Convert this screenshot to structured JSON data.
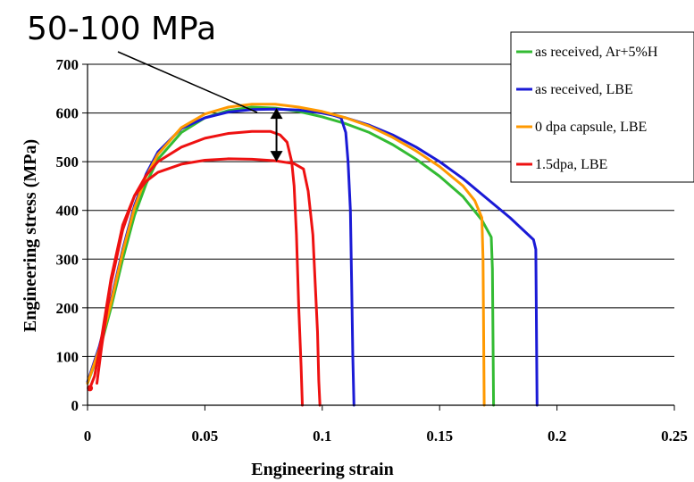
{
  "chart_data": {
    "type": "line",
    "xlabel": "Engineering strain",
    "ylabel": "Engineering stress (MPa)",
    "xlim": [
      0,
      0.25
    ],
    "ylim": [
      0,
      700
    ],
    "xticks": [
      "0",
      "0.05",
      "0.1",
      "0.15",
      "0.2",
      "0.25"
    ],
    "yticks": [
      "0",
      "100",
      "200",
      "300",
      "400",
      "500",
      "600",
      "700"
    ],
    "grid": "horizontal",
    "legend_position": "top-right",
    "annotation": "50-100 MPa",
    "series": [
      {
        "name": "as received, Ar+5%H",
        "color": "#33bb33",
        "points": [
          [
            0.0,
            45
          ],
          [
            0.005,
            110
          ],
          [
            0.01,
            200
          ],
          [
            0.015,
            300
          ],
          [
            0.02,
            390
          ],
          [
            0.025,
            455
          ],
          [
            0.03,
            505
          ],
          [
            0.04,
            560
          ],
          [
            0.05,
            590
          ],
          [
            0.06,
            605
          ],
          [
            0.07,
            612
          ],
          [
            0.08,
            610
          ],
          [
            0.09,
            603
          ],
          [
            0.1,
            592
          ],
          [
            0.11,
            578
          ],
          [
            0.12,
            560
          ],
          [
            0.13,
            535
          ],
          [
            0.14,
            505
          ],
          [
            0.15,
            470
          ],
          [
            0.16,
            428
          ],
          [
            0.168,
            380
          ],
          [
            0.172,
            345
          ],
          [
            0.1725,
            280
          ],
          [
            0.173,
            0
          ]
        ]
      },
      {
        "name": "as received, LBE",
        "color": "#1a1ad6",
        "points": [
          [
            0.0,
            48
          ],
          [
            0.005,
            120
          ],
          [
            0.01,
            215
          ],
          [
            0.015,
            320
          ],
          [
            0.02,
            410
          ],
          [
            0.025,
            475
          ],
          [
            0.03,
            520
          ],
          [
            0.04,
            568
          ],
          [
            0.05,
            590
          ],
          [
            0.06,
            602
          ],
          [
            0.07,
            607
          ],
          [
            0.08,
            608
          ],
          [
            0.09,
            606
          ],
          [
            0.1,
            600
          ],
          [
            0.11,
            590
          ],
          [
            0.12,
            575
          ],
          [
            0.13,
            555
          ],
          [
            0.14,
            530
          ],
          [
            0.15,
            500
          ],
          [
            0.16,
            465
          ],
          [
            0.17,
            425
          ],
          [
            0.18,
            385
          ],
          [
            0.19,
            340
          ],
          [
            0.191,
            320
          ],
          [
            0.1915,
            0
          ]
        ]
      },
      {
        "name": "as received, LBE",
        "color": "#1a1ad6",
        "points": [
          [
            0.105,
            595
          ],
          [
            0.108,
            590
          ],
          [
            0.11,
            560
          ],
          [
            0.111,
            500
          ],
          [
            0.112,
            400
          ],
          [
            0.1125,
            250
          ],
          [
            0.113,
            100
          ],
          [
            0.1135,
            0
          ]
        ]
      },
      {
        "name": "0 dpa capsule, LBE",
        "color": "#ff9900",
        "points": [
          [
            0.0,
            45
          ],
          [
            0.005,
            115
          ],
          [
            0.01,
            210
          ],
          [
            0.015,
            315
          ],
          [
            0.02,
            405
          ],
          [
            0.025,
            470
          ],
          [
            0.03,
            515
          ],
          [
            0.04,
            570
          ],
          [
            0.05,
            598
          ],
          [
            0.06,
            612
          ],
          [
            0.07,
            618
          ],
          [
            0.08,
            618
          ],
          [
            0.09,
            612
          ],
          [
            0.1,
            603
          ],
          [
            0.11,
            590
          ],
          [
            0.12,
            573
          ],
          [
            0.13,
            550
          ],
          [
            0.14,
            522
          ],
          [
            0.15,
            490
          ],
          [
            0.16,
            450
          ],
          [
            0.165,
            420
          ],
          [
            0.168,
            385
          ],
          [
            0.1685,
            300
          ],
          [
            0.169,
            0
          ]
        ]
      },
      {
        "name": "1.5dpa, LBE",
        "color": "#ee1111",
        "points": [
          [
            0.001,
            35
          ],
          [
            0.003,
            60
          ],
          [
            0.006,
            140
          ],
          [
            0.01,
            260
          ],
          [
            0.015,
            370
          ],
          [
            0.02,
            430
          ],
          [
            0.025,
            460
          ],
          [
            0.03,
            478
          ],
          [
            0.04,
            495
          ],
          [
            0.05,
            503
          ],
          [
            0.06,
            506
          ],
          [
            0.07,
            505
          ],
          [
            0.08,
            502
          ],
          [
            0.088,
            496
          ],
          [
            0.092,
            485
          ],
          [
            0.094,
            440
          ],
          [
            0.096,
            350
          ],
          [
            0.097,
            250
          ],
          [
            0.098,
            150
          ],
          [
            0.0985,
            50
          ],
          [
            0.099,
            0
          ]
        ]
      },
      {
        "name": "1.5dpa, LBE",
        "color": "#ee1111",
        "points": [
          [
            0.004,
            45
          ],
          [
            0.006,
            120
          ],
          [
            0.01,
            250
          ],
          [
            0.015,
            360
          ],
          [
            0.02,
            430
          ],
          [
            0.025,
            472
          ],
          [
            0.03,
            500
          ],
          [
            0.04,
            530
          ],
          [
            0.05,
            548
          ],
          [
            0.06,
            558
          ],
          [
            0.07,
            562
          ],
          [
            0.078,
            562
          ],
          [
            0.082,
            555
          ],
          [
            0.085,
            540
          ],
          [
            0.087,
            500
          ],
          [
            0.088,
            450
          ],
          [
            0.089,
            350
          ],
          [
            0.09,
            200
          ],
          [
            0.091,
            80
          ],
          [
            0.0915,
            0
          ]
        ]
      }
    ],
    "legend": [
      {
        "name": "as received, Ar+5%H",
        "color": "#33bb33"
      },
      {
        "name": "as received, LBE",
        "color": "#1a1ad6"
      },
      {
        "name": "0 dpa capsule, LBE",
        "color": "#ff9900"
      },
      {
        "name": "1.5dpa, LBE",
        "color": "#ee1111"
      }
    ],
    "arrow_range": [
      500,
      610
    ],
    "arrow_x": 0.0805
  }
}
